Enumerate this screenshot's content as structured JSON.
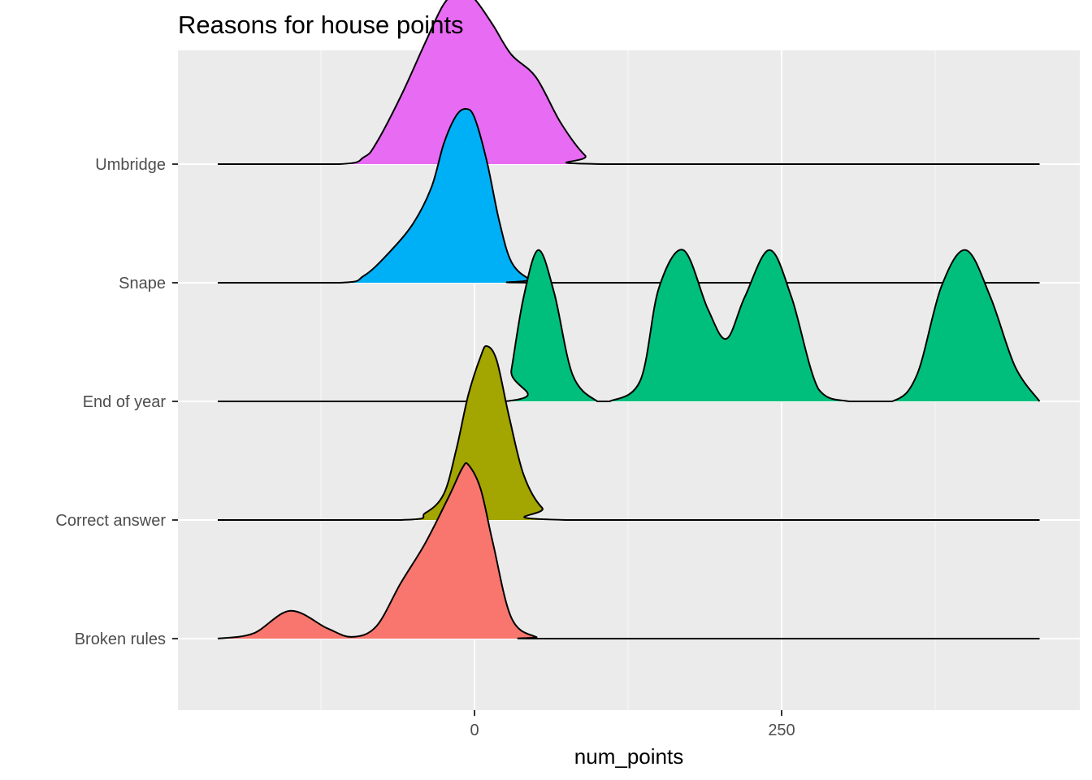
{
  "chart_data": {
    "type": "ridgeline",
    "title": "Reasons for house points",
    "xlabel": "num_points",
    "ylabel": "",
    "x_ticks": [
      0,
      250
    ],
    "x_minor_ticks": [
      -125,
      125,
      375
    ],
    "xlim": [
      -250,
      490
    ],
    "categories": [
      "Broken rules",
      "Correct answer",
      "End of year",
      "Snape",
      "Umbridge"
    ],
    "grid": true,
    "legend": "none",
    "series": [
      {
        "category": "Broken rules",
        "color": "#F8766D",
        "points": [
          [
            -209,
            0
          ],
          [
            -180,
            0.03
          ],
          [
            -150,
            0.16
          ],
          [
            -120,
            0.06
          ],
          [
            -100,
            0.01
          ],
          [
            -80,
            0.07
          ],
          [
            -60,
            0.32
          ],
          [
            -40,
            0.55
          ],
          [
            -20,
            0.83
          ],
          [
            -10,
            0.98
          ],
          [
            -5,
            1.0
          ],
          [
            5,
            0.86
          ],
          [
            15,
            0.55
          ],
          [
            30,
            0.12
          ],
          [
            50,
            0.01
          ],
          [
            70,
            0
          ],
          [
            460,
            0
          ]
        ]
      },
      {
        "category": "Correct answer",
        "color": "#A3A500",
        "points": [
          [
            -209,
            0
          ],
          [
            -60,
            0
          ],
          [
            -40,
            0.04
          ],
          [
            -25,
            0.15
          ],
          [
            -15,
            0.4
          ],
          [
            -5,
            0.72
          ],
          [
            5,
            0.94
          ],
          [
            10,
            1.0
          ],
          [
            18,
            0.92
          ],
          [
            28,
            0.6
          ],
          [
            40,
            0.26
          ],
          [
            55,
            0.07
          ],
          [
            75,
            0
          ],
          [
            460,
            0
          ]
        ]
      },
      {
        "category": "End of year",
        "color": "#00BF7D",
        "points": [
          [
            -209,
            0
          ],
          [
            25,
            0
          ],
          [
            30,
            0.18
          ],
          [
            40,
            0.6
          ],
          [
            52,
            0.87
          ],
          [
            65,
            0.62
          ],
          [
            80,
            0.15
          ],
          [
            100,
            0
          ],
          [
            110,
            0
          ],
          [
            135,
            0.12
          ],
          [
            150,
            0.65
          ],
          [
            170,
            0.87
          ],
          [
            190,
            0.53
          ],
          [
            205,
            0.36
          ],
          [
            220,
            0.6
          ],
          [
            240,
            0.87
          ],
          [
            258,
            0.6
          ],
          [
            280,
            0.07
          ],
          [
            305,
            0
          ],
          [
            340,
            0
          ],
          [
            360,
            0.15
          ],
          [
            380,
            0.66
          ],
          [
            400,
            0.87
          ],
          [
            420,
            0.6
          ],
          [
            440,
            0.2
          ],
          [
            460,
            0
          ]
        ]
      },
      {
        "category": "Snape",
        "color": "#00B0F6",
        "points": [
          [
            -209,
            0
          ],
          [
            -110,
            0
          ],
          [
            -90,
            0.04
          ],
          [
            -70,
            0.17
          ],
          [
            -50,
            0.34
          ],
          [
            -35,
            0.55
          ],
          [
            -25,
            0.8
          ],
          [
            -15,
            0.96
          ],
          [
            -7,
            1.0
          ],
          [
            0,
            0.95
          ],
          [
            10,
            0.7
          ],
          [
            20,
            0.36
          ],
          [
            30,
            0.12
          ],
          [
            45,
            0.02
          ],
          [
            60,
            0
          ],
          [
            460,
            0
          ]
        ]
      },
      {
        "category": "Umbridge",
        "color": "#E76BF3",
        "points": [
          [
            -209,
            0
          ],
          [
            -110,
            0
          ],
          [
            -90,
            0.04
          ],
          [
            -80,
            0.12
          ],
          [
            -60,
            0.39
          ],
          [
            -40,
            0.7
          ],
          [
            -25,
            0.92
          ],
          [
            -12,
            1.0
          ],
          [
            0,
            0.95
          ],
          [
            15,
            0.8
          ],
          [
            30,
            0.63
          ],
          [
            50,
            0.5
          ],
          [
            70,
            0.24
          ],
          [
            90,
            0.05
          ],
          [
            105,
            0
          ],
          [
            460,
            0
          ]
        ]
      }
    ]
  }
}
